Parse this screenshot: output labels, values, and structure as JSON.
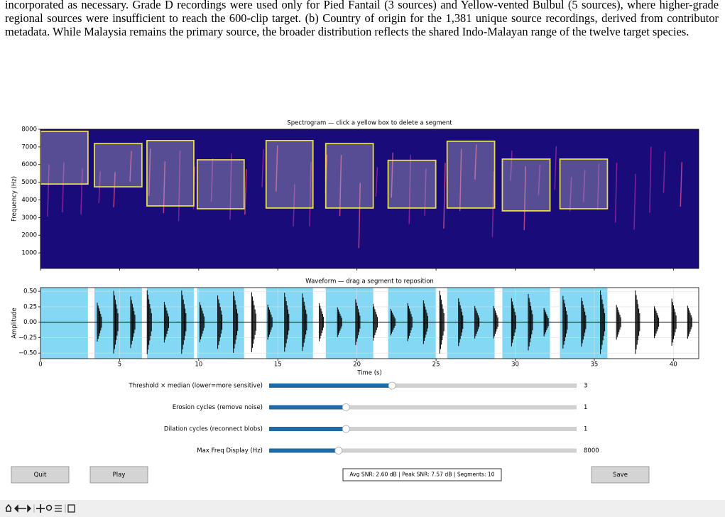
{
  "paper_text": "incorporated as necessary. Grade D recordings were used only for Pied Fantail (3 sources) and Yellow-vented Bulbul (5 sources), where higher-grade regional sources were insufficient to reach the 600-clip target. (b) Country of origin for the 1,381 unique source recordings, derived from contributor metadata. While Malaysia remains the primary source, the broader distribution reflects the shared Indo-Malayan range of the twelve target species.",
  "chart_data": [
    {
      "type": "spectrogram",
      "title": "Spectrogram — click a yellow box to delete a segment",
      "ylabel": "Frequency (Hz)",
      "xlim": [
        0,
        41.6
      ],
      "ylim": [
        120,
        8000
      ],
      "xticks": [
        0,
        5,
        10,
        15,
        20,
        25,
        30,
        35,
        40
      ],
      "yticks": [
        1000,
        2000,
        3000,
        4000,
        5000,
        6000,
        7000,
        8000
      ],
      "box_color": "#e6dc4a",
      "segments": [
        {
          "start": 0,
          "end": 3.0,
          "low": 4900,
          "high": 7880
        },
        {
          "start": 3.41,
          "end": 6.41,
          "low": 4740,
          "high": 7190
        },
        {
          "start": 6.73,
          "end": 9.69,
          "low": 3660,
          "high": 7360
        },
        {
          "start": 9.91,
          "end": 12.87,
          "low": 3500,
          "high": 6270
        },
        {
          "start": 14.26,
          "end": 17.22,
          "low": 3540,
          "high": 7360
        },
        {
          "start": 18.03,
          "end": 21.03,
          "low": 3540,
          "high": 7190
        },
        {
          "start": 21.97,
          "end": 24.98,
          "low": 3540,
          "high": 6240
        },
        {
          "start": 25.7,
          "end": 28.7,
          "low": 3540,
          "high": 7320
        },
        {
          "start": 29.19,
          "end": 32.2,
          "low": 3380,
          "high": 6310
        },
        {
          "start": 32.83,
          "end": 35.83,
          "low": 3500,
          "high": 6310
        }
      ]
    },
    {
      "type": "waveform",
      "title": "Waveform — drag a segment to reposition",
      "xlabel": "Time (s)",
      "ylabel": "Amplitude",
      "xlim": [
        0,
        41.6
      ],
      "ylim": [
        -0.59,
        0.56
      ],
      "xticks": [
        0,
        5,
        10,
        15,
        20,
        25,
        30,
        35,
        40
      ],
      "yticks": [
        {
          "value": -0.5,
          "label": "−0.50"
        },
        {
          "value": -0.25,
          "label": "−0.25"
        },
        {
          "value": 0,
          "label": "0.00"
        },
        {
          "value": 0.25,
          "label": "0.25"
        },
        {
          "value": 0.5,
          "label": "0.50"
        }
      ],
      "region_color": "#85d8f4",
      "grid": true
    }
  ],
  "sliders": [
    {
      "label": "Threshold × median (lower=more sensitive)",
      "value": 3,
      "range": [
        1,
        6
      ]
    },
    {
      "label": "Erosion cycles (remove noise)",
      "value": 1,
      "range": [
        0,
        4
      ]
    },
    {
      "label": "Dilation cycles (reconnect blobs)",
      "value": 1,
      "range": [
        0,
        4
      ]
    },
    {
      "label": "Max Freq Display (Hz)",
      "value": 8000,
      "range": [
        1000,
        32000
      ]
    }
  ],
  "buttons": [
    "Quit",
    "Play",
    "Save"
  ],
  "status": "Avg SNR: 2.60 dB | Peak SNR: 7.57 dB | Segments: 10"
}
